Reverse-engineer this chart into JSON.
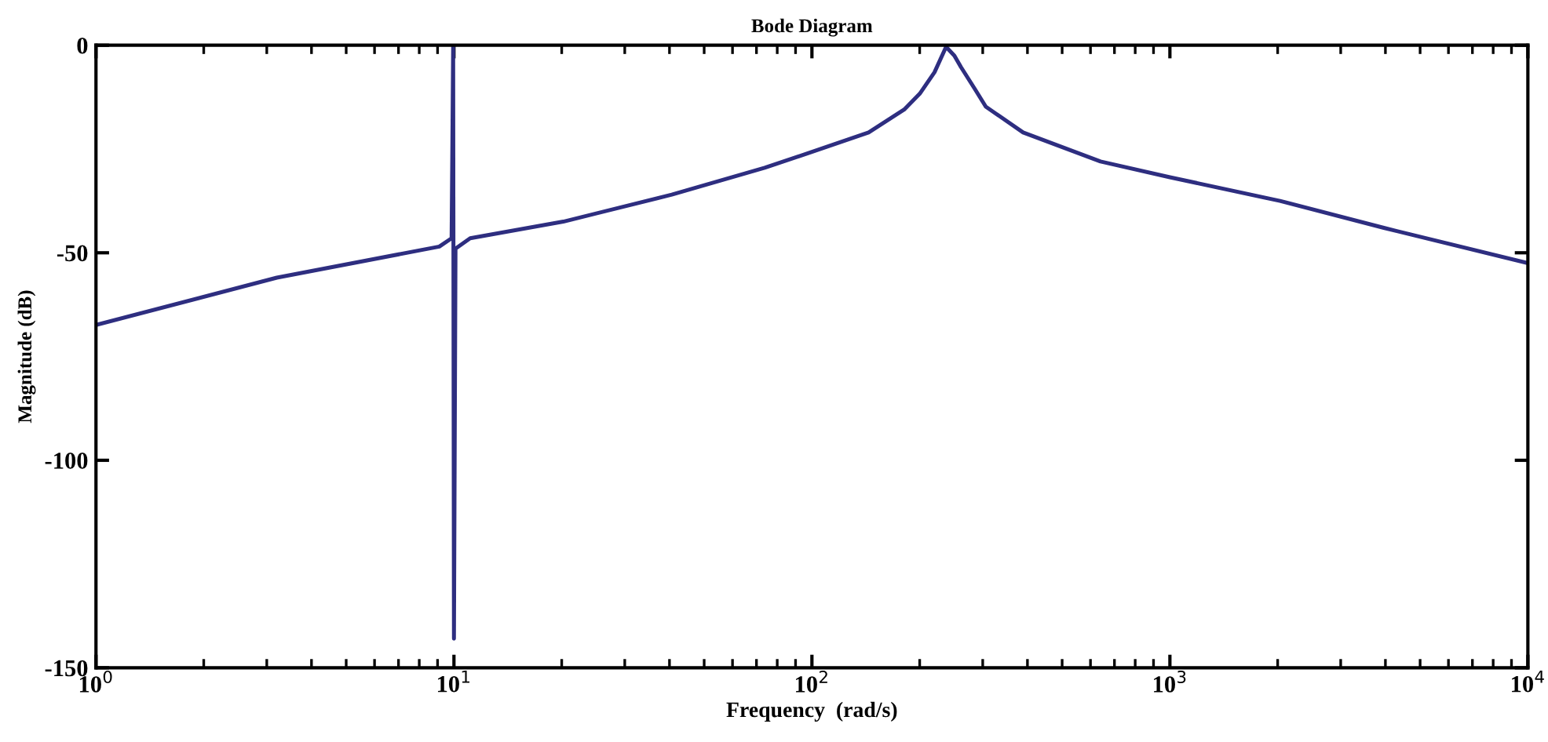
{
  "chart_data": {
    "type": "line",
    "title": "Bode Diagram",
    "xlabel": "Frequency  (rad/s)",
    "ylabel": "Magnitude (dB)",
    "log": "x",
    "grid": false,
    "legend": false,
    "marker": "none",
    "line_style": "solid",
    "xlim": [
      1,
      10000
    ],
    "ylim": [
      -150,
      0
    ],
    "xticks": [
      {
        "value": 1,
        "label": "10$^{0}$"
      },
      {
        "value": 10,
        "label": "10$^{1}$"
      },
      {
        "value": 100,
        "label": "10$^{2}$"
      },
      {
        "value": 1000,
        "label": "10$^{3}$"
      },
      {
        "value": 10000,
        "label": "10$^{4}$"
      }
    ],
    "yticks": [
      0,
      -50,
      -100,
      -150
    ],
    "series": [
      {
        "color": "#2e2e80",
        "x": [
          1,
          3.2,
          9.1,
          9.85,
          9.95,
          10.0,
          10.1,
          11.1,
          20.2,
          40.6,
          73.8,
          100,
          144,
          181,
          200,
          220,
          237,
          250,
          261,
          285,
          306,
          389,
          640,
          1000,
          2030,
          3960,
          10000
        ],
        "values": [
          -67.4,
          -56,
          -48.5,
          -46.5,
          0,
          -143,
          -49,
          -46.5,
          -42.5,
          -36,
          -29.5,
          -25.7,
          -21,
          -15.5,
          -11.7,
          -6.5,
          -0.4,
          -2.5,
          -5.3,
          -10.5,
          -14.8,
          -21,
          -28,
          -31.8,
          -37.5,
          -44,
          -52.5
        ]
      }
    ]
  }
}
